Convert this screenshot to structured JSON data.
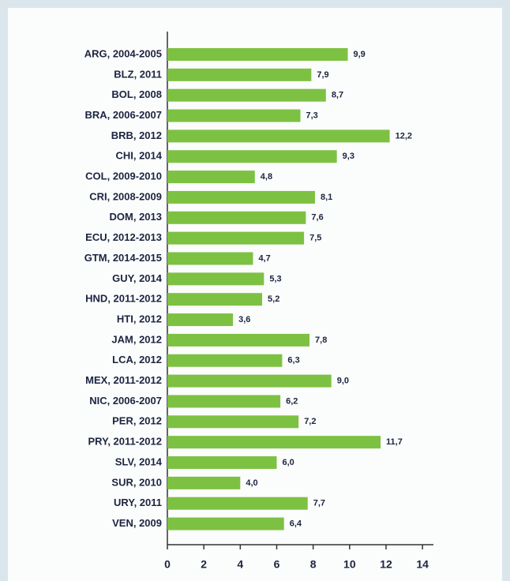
{
  "chart_data": {
    "type": "bar",
    "orientation": "horizontal",
    "color": "#7dc142",
    "categories": [
      "ARG, 2004-2005",
      "BLZ, 2011",
      "BOL, 2008",
      "BRA, 2006-2007",
      "BRB, 2012",
      "CHI, 2014",
      "COL, 2009-2010",
      "CRI, 2008-2009",
      "DOM, 2013",
      "ECU, 2012-2013",
      "GTM, 2014-2015",
      "GUY, 2014",
      "HND, 2011-2012",
      "HTI, 2012",
      "JAM, 2012",
      "LCA, 2012",
      "MEX, 2011-2012",
      "NIC, 2006-2007",
      "PER, 2012",
      "PRY, 2011-2012",
      "SLV, 2014",
      "SUR, 2010",
      "URY, 2011",
      "VEN, 2009"
    ],
    "values": [
      9.9,
      7.9,
      8.7,
      7.3,
      12.2,
      9.3,
      4.8,
      8.1,
      7.6,
      7.5,
      4.7,
      5.3,
      5.2,
      3.6,
      7.8,
      6.3,
      9.0,
      6.2,
      7.2,
      11.7,
      6.0,
      4.0,
      7.7,
      6.4
    ],
    "value_labels": [
      "9,9",
      "7,9",
      "8,7",
      "7,3",
      "12,2",
      "9,3",
      "4,8",
      "8,1",
      "7,6",
      "7,5",
      "4,7",
      "5,3",
      "5,2",
      "3,6",
      "7,8",
      "6,3",
      "9,0",
      "6,2",
      "7,2",
      "11,7",
      "6,0",
      "4,0",
      "7,7",
      "6,4"
    ],
    "xlim": [
      0,
      14.6
    ],
    "xticks": [
      0,
      2,
      4,
      6,
      8,
      10,
      12,
      14
    ]
  }
}
